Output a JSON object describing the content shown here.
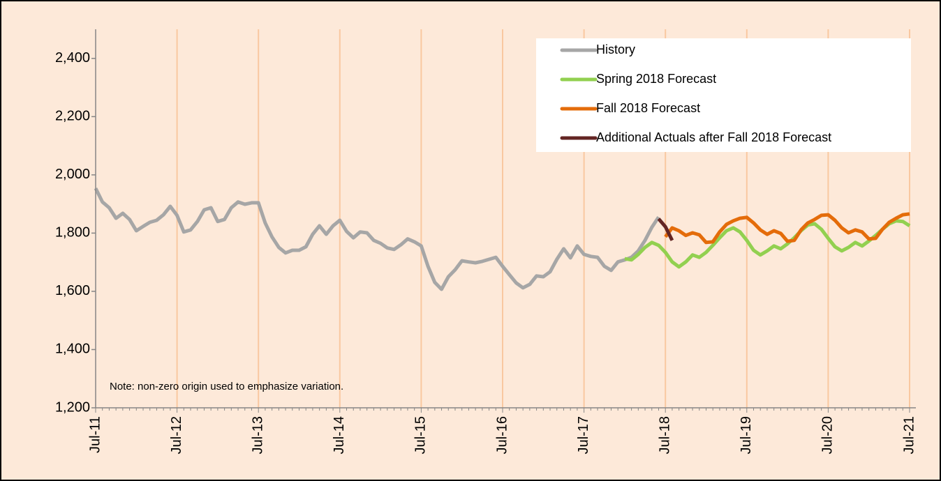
{
  "chart_data": {
    "type": "line",
    "note": "Note: non-zero origin used to emphasize variation.",
    "categories": [
      "Jul-11",
      null,
      null,
      null,
      null,
      null,
      null,
      null,
      null,
      null,
      null,
      null,
      "Jul-12",
      null,
      null,
      null,
      null,
      null,
      null,
      null,
      null,
      null,
      null,
      null,
      "Jul-13",
      null,
      null,
      null,
      null,
      null,
      null,
      null,
      null,
      null,
      null,
      null,
      "Jul-14",
      null,
      null,
      null,
      null,
      null,
      null,
      null,
      null,
      null,
      null,
      null,
      "Jul-15",
      null,
      null,
      null,
      null,
      null,
      null,
      null,
      null,
      null,
      null,
      null,
      "Jul-16",
      null,
      null,
      null,
      null,
      null,
      null,
      null,
      null,
      null,
      null,
      null,
      "Jul-17",
      null,
      null,
      null,
      null,
      null,
      null,
      null,
      null,
      null,
      null,
      null,
      "Jul-18",
      null,
      null,
      null,
      null,
      null,
      null,
      null,
      null,
      null,
      null,
      null,
      "Jul-19",
      null,
      null,
      null,
      null,
      null,
      null,
      null,
      null,
      null,
      null,
      null,
      "Jul-20",
      null,
      null,
      null,
      null,
      null,
      null,
      null,
      null,
      null,
      null,
      null,
      "Jul-21"
    ],
    "series": [
      {
        "name": "History",
        "color": "#a6a6a6",
        "values": [
          1954,
          1907,
          1887,
          1851,
          1868,
          1847,
          1808,
          1823,
          1837,
          1844,
          1863,
          1892,
          1861,
          1804,
          1811,
          1840,
          1880,
          1887,
          1840,
          1847,
          1887,
          1907,
          1899,
          1904,
          1904,
          1835,
          1787,
          1751,
          1732,
          1741,
          1741,
          1753,
          1796,
          1825,
          1796,
          1825,
          1844,
          1806,
          1784,
          1804,
          1801,
          1775,
          1765,
          1749,
          1744,
          1760,
          1780,
          1770,
          1756,
          1686,
          1631,
          1607,
          1650,
          1674,
          1705,
          1701,
          1698,
          1703,
          1710,
          1717,
          1686,
          1657,
          1629,
          1612,
          1624,
          1653,
          1650,
          1667,
          1710,
          1746,
          1715,
          1756,
          1727,
          1720,
          1717,
          1686,
          1672,
          1701,
          1708,
          1717,
          1739,
          1775,
          1820,
          1855,
          null,
          null,
          null,
          null,
          null,
          null,
          null,
          null,
          null,
          null,
          null,
          null,
          null,
          null,
          null,
          null,
          null,
          null,
          null,
          null,
          null,
          null,
          null,
          null,
          null,
          null,
          null,
          null,
          null,
          null,
          null,
          null,
          null,
          null,
          null,
          null,
          null
        ]
      },
      {
        "name": "Spring 2018 Forecast",
        "color": "#92d050",
        "values": [
          null,
          null,
          null,
          null,
          null,
          null,
          null,
          null,
          null,
          null,
          null,
          null,
          null,
          null,
          null,
          null,
          null,
          null,
          null,
          null,
          null,
          null,
          null,
          null,
          null,
          null,
          null,
          null,
          null,
          null,
          null,
          null,
          null,
          null,
          null,
          null,
          null,
          null,
          null,
          null,
          null,
          null,
          null,
          null,
          null,
          null,
          null,
          null,
          null,
          null,
          null,
          null,
          null,
          null,
          null,
          null,
          null,
          null,
          null,
          null,
          null,
          null,
          null,
          null,
          null,
          null,
          null,
          null,
          null,
          null,
          null,
          null,
          null,
          null,
          null,
          null,
          null,
          null,
          1712,
          1708,
          1727,
          1751,
          1768,
          1758,
          1734,
          1701,
          1684,
          1701,
          1725,
          1717,
          1734,
          1758,
          1784,
          1808,
          1818,
          1804,
          1775,
          1741,
          1725,
          1739,
          1756,
          1746,
          1763,
          1784,
          1808,
          1828,
          1832,
          1813,
          1782,
          1753,
          1739,
          1751,
          1768,
          1756,
          1773,
          1792,
          1813,
          1832,
          1842,
          1840,
          1825
        ]
      },
      {
        "name": "Fall 2018 Forecast",
        "color": "#e46c0a",
        "values": [
          null,
          null,
          null,
          null,
          null,
          null,
          null,
          null,
          null,
          null,
          null,
          null,
          null,
          null,
          null,
          null,
          null,
          null,
          null,
          null,
          null,
          null,
          null,
          null,
          null,
          null,
          null,
          null,
          null,
          null,
          null,
          null,
          null,
          null,
          null,
          null,
          null,
          null,
          null,
          null,
          null,
          null,
          null,
          null,
          null,
          null,
          null,
          null,
          null,
          null,
          null,
          null,
          null,
          null,
          null,
          null,
          null,
          null,
          null,
          null,
          null,
          null,
          null,
          null,
          null,
          null,
          null,
          null,
          null,
          null,
          null,
          null,
          null,
          null,
          null,
          null,
          null,
          null,
          null,
          null,
          null,
          null,
          null,
          null,
          1787,
          1818,
          1808,
          1792,
          1801,
          1794,
          1768,
          1770,
          1804,
          1830,
          1842,
          1851,
          1854,
          1835,
          1811,
          1796,
          1808,
          1799,
          1772,
          1775,
          1811,
          1835,
          1847,
          1861,
          1863,
          1844,
          1818,
          1801,
          1811,
          1804,
          1780,
          1782,
          1813,
          1837,
          1851,
          1863,
          1866
        ]
      },
      {
        "name": "Additional Actuals after Fall 2018 Forecast",
        "color": "#632523",
        "values": [
          null,
          null,
          null,
          null,
          null,
          null,
          null,
          null,
          null,
          null,
          null,
          null,
          null,
          null,
          null,
          null,
          null,
          null,
          null,
          null,
          null,
          null,
          null,
          null,
          null,
          null,
          null,
          null,
          null,
          null,
          null,
          null,
          null,
          null,
          null,
          null,
          null,
          null,
          null,
          null,
          null,
          null,
          null,
          null,
          null,
          null,
          null,
          null,
          null,
          null,
          null,
          null,
          null,
          null,
          null,
          null,
          null,
          null,
          null,
          null,
          null,
          null,
          null,
          null,
          null,
          null,
          null,
          null,
          null,
          null,
          null,
          null,
          null,
          null,
          null,
          null,
          null,
          null,
          null,
          null,
          null,
          null,
          null,
          1849,
          1822,
          1775,
          null,
          null,
          null,
          null,
          null,
          null,
          null,
          null,
          null,
          null,
          null,
          null,
          null,
          null,
          null,
          null,
          null,
          null,
          null,
          null,
          null,
          null,
          null,
          null,
          null,
          null,
          null,
          null,
          null,
          null,
          null,
          null,
          null,
          null,
          null
        ]
      }
    ],
    "ylim": [
      1200,
      2500
    ],
    "yticks": [
      {
        "value": 1200,
        "label": "1,200"
      },
      {
        "value": 1400,
        "label": "1,400"
      },
      {
        "value": 1600,
        "label": "1,600"
      },
      {
        "value": 1800,
        "label": "1,800"
      },
      {
        "value": 2000,
        "label": "2,000"
      },
      {
        "value": 2200,
        "label": "2,200"
      },
      {
        "value": 2400,
        "label": "2,400"
      }
    ],
    "grid": true,
    "legend": "upper right"
  }
}
